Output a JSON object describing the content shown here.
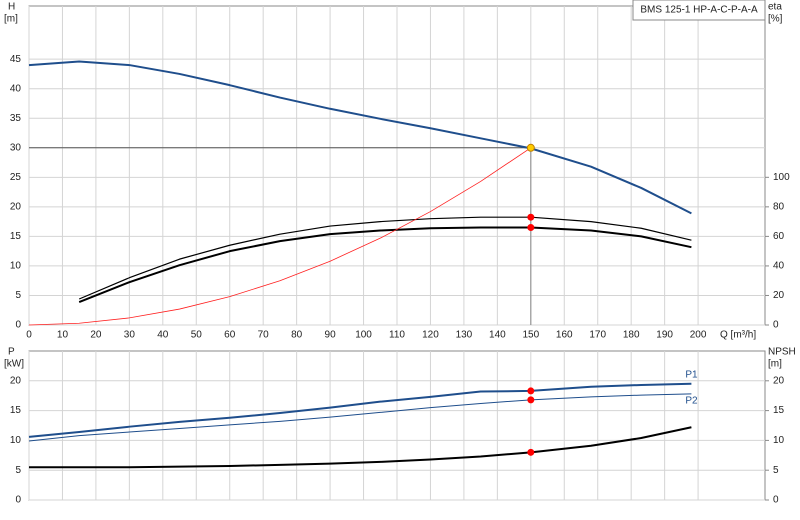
{
  "chart_data": [
    {
      "type": "line",
      "title": "BMS 125-1 HP-A-C-P-A-A",
      "ylabel": "H",
      "yunit": "[m]",
      "y2label": "eta",
      "y2unit": "[%]",
      "xlabel": "Q [m³/h]",
      "xlim": [
        0,
        220
      ],
      "xticks": [
        0,
        10,
        20,
        30,
        40,
        50,
        60,
        70,
        80,
        90,
        100,
        110,
        120,
        130,
        140,
        150,
        160,
        170,
        180,
        190,
        200
      ],
      "ylim": [
        0,
        54
      ],
      "yticks": [
        0,
        5,
        10,
        15,
        20,
        25,
        30,
        35,
        40,
        45
      ],
      "y2lim": [
        0,
        216
      ],
      "y2ticks": [
        0,
        20,
        40,
        60,
        80,
        100
      ],
      "grid": true,
      "x": [
        0,
        15,
        30,
        45,
        60,
        75,
        90,
        105,
        120,
        135,
        150,
        168,
        183,
        198
      ],
      "series": [
        {
          "color": "#1f4e8c",
          "width": 2,
          "values": [
            44,
            44.6,
            44,
            42.5,
            40.6,
            38.5,
            36.6,
            34.9,
            33.3,
            31.6,
            29.9,
            26.8,
            23.2,
            18.9
          ]
        },
        {
          "color": "#000000",
          "width": 1.2,
          "axis": "y2",
          "values": [
            null,
            17.6,
            32,
            44.6,
            54,
            61.5,
            67,
            70,
            72,
            73,
            73,
            70,
            65.5,
            57.4
          ]
        },
        {
          "color": "#000000",
          "width": 2,
          "axis": "y2",
          "values": [
            null,
            15.5,
            29,
            40.5,
            50,
            56.8,
            61.5,
            64,
            65.5,
            66,
            66,
            64,
            60,
            52.7
          ]
        },
        {
          "color": "#ff2020",
          "width": 0.8,
          "values": [
            0,
            0.3,
            1.2,
            2.7,
            4.8,
            7.5,
            10.8,
            14.7,
            19.2,
            24.3,
            30,
            null,
            null,
            null
          ]
        }
      ],
      "crosshair": {
        "x": 150,
        "y": 30
      },
      "points": [
        {
          "x": 150,
          "y": 30,
          "color": "#ffcc00"
        },
        {
          "x": 150,
          "y": 73,
          "axis": "y2",
          "color": "#ff0000"
        },
        {
          "x": 150,
          "y": 66,
          "axis": "y2",
          "color": "#ff0000"
        }
      ]
    },
    {
      "type": "line",
      "ylabel": "P",
      "yunit": "[kW]",
      "y2label": "NPSH",
      "y2unit": "[m]",
      "xlim": [
        0,
        220
      ],
      "ylim": [
        0,
        25
      ],
      "yticks": [
        0,
        5,
        10,
        15,
        20
      ],
      "y2lim": [
        0,
        25
      ],
      "y2ticks": [
        0,
        5,
        10,
        15,
        20
      ],
      "grid": true,
      "x": [
        0,
        15,
        30,
        45,
        60,
        75,
        90,
        105,
        120,
        135,
        150,
        168,
        183,
        198
      ],
      "series": [
        {
          "name": "P1",
          "color": "#1f4e8c",
          "width": 2,
          "values": [
            10.6,
            11.4,
            12.3,
            13.1,
            13.8,
            14.6,
            15.5,
            16.5,
            17.3,
            18.2,
            18.3,
            19,
            19.3,
            19.5
          ]
        },
        {
          "name": "P2",
          "color": "#1f4e8c",
          "width": 1,
          "values": [
            9.9,
            10.8,
            11.4,
            12,
            12.6,
            13.2,
            13.9,
            14.7,
            15.5,
            16.2,
            16.8,
            17.3,
            17.6,
            17.8
          ]
        },
        {
          "color": "#000000",
          "width": 2,
          "axis": "y2",
          "values": [
            5.5,
            5.5,
            5.5,
            5.6,
            5.7,
            5.9,
            6.1,
            6.4,
            6.8,
            7.3,
            8,
            9.1,
            10.4,
            12.2
          ]
        }
      ],
      "points": [
        {
          "x": 150,
          "y": 18.3,
          "color": "#ff0000"
        },
        {
          "x": 150,
          "y": 16.8,
          "color": "#ff0000"
        },
        {
          "x": 150,
          "y": 8,
          "axis": "y2",
          "color": "#ff0000"
        }
      ]
    }
  ]
}
